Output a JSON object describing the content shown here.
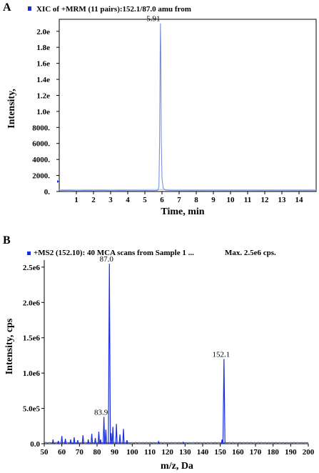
{
  "chart_data": [
    {
      "panel": "A",
      "type": "line",
      "header": "XIC of +MRM (11 pairs):152.1/87.0 amu from",
      "xlabel": "Time, min",
      "ylabel": "Intensity,",
      "xlim": [
        0,
        15
      ],
      "ylim": [
        0,
        2150
      ],
      "xticks": [
        1,
        2,
        3,
        4,
        5,
        6,
        7,
        8,
        9,
        10,
        11,
        12,
        13,
        14
      ],
      "xtick_labels": [
        "1",
        "2",
        "3",
        "4",
        "5",
        "6",
        "7",
        "8",
        "9",
        "10",
        "11",
        "12",
        "13",
        "14"
      ],
      "yticks": [
        0,
        200,
        400,
        600,
        800,
        1000,
        1200,
        1400,
        1600,
        1800,
        2000
      ],
      "ytick_labels": [
        "0.",
        "2000.",
        "4000.",
        "6000.",
        "8000.",
        "1.0e",
        "1.2e",
        "1.4e",
        "1.6e",
        "1.8e",
        "2.0e"
      ],
      "peak_label": "5.91",
      "series": [
        {
          "color": "#6f86d9",
          "x": [
            0.0,
            0.5,
            1.0,
            1.5,
            2.0,
            2.5,
            3.0,
            3.5,
            4.0,
            4.5,
            5.0,
            5.5,
            5.75,
            5.82,
            5.86,
            5.89,
            5.91,
            5.93,
            5.96,
            6.0,
            6.07,
            6.2,
            6.5,
            7.0,
            8.0,
            9.0,
            10.0,
            11.0,
            12.0,
            13.0,
            14.0,
            15.0
          ],
          "y": [
            12,
            14,
            11,
            13,
            12,
            14,
            12,
            13,
            11,
            12,
            13,
            12,
            14,
            60,
            600,
            1700,
            2100,
            1750,
            650,
            160,
            40,
            18,
            13,
            12,
            11,
            12,
            11,
            12,
            11,
            12,
            11,
            12
          ]
        },
        {
          "color": "#b0bcec",
          "x": [
            0.0,
            1.0,
            2.0,
            3.0,
            4.0,
            5.0,
            6.0,
            7.0,
            8.0,
            9.0,
            10.0,
            11.0,
            12.0,
            13.0,
            14.0,
            15.0
          ],
          "y": [
            22,
            24,
            22,
            23,
            22,
            24,
            24,
            23,
            22,
            23,
            22,
            23,
            22,
            23,
            22,
            23
          ]
        }
      ]
    },
    {
      "panel": "B",
      "type": "bar",
      "header": "+MS2 (152.10): 40 MCA scans from Sample 1 ...",
      "max_label": "Max. 2.5e6 cps.",
      "xlabel": "m/z, Da",
      "ylabel": "Intensity, cps",
      "xlim": [
        50,
        200
      ],
      "ylim": [
        0,
        2600000
      ],
      "xticks": [
        50,
        60,
        70,
        80,
        90,
        100,
        110,
        120,
        130,
        140,
        150,
        160,
        170,
        180,
        190,
        200
      ],
      "xtick_labels": [
        "50",
        "60",
        "70",
        "80",
        "90",
        "100",
        "110",
        "120",
        "130",
        "140",
        "150",
        "160",
        "170",
        "180",
        "190",
        "200"
      ],
      "yticks": [
        0,
        500000,
        1000000,
        1500000,
        2000000,
        2500000
      ],
      "ytick_labels": [
        "0.0",
        "5.0e5",
        "1.0e6",
        "1.5e6",
        "2.0e6",
        "2.5e6"
      ],
      "color": "#1a2ee0",
      "peaks": [
        {
          "mz": 55,
          "intensity": 60000
        },
        {
          "mz": 58,
          "intensity": 40000
        },
        {
          "mz": 60,
          "intensity": 110000
        },
        {
          "mz": 62,
          "intensity": 70000
        },
        {
          "mz": 65,
          "intensity": 60000
        },
        {
          "mz": 67,
          "intensity": 90000
        },
        {
          "mz": 69,
          "intensity": 50000
        },
        {
          "mz": 72,
          "intensity": 120000
        },
        {
          "mz": 75,
          "intensity": 60000
        },
        {
          "mz": 77,
          "intensity": 140000
        },
        {
          "mz": 79,
          "intensity": 80000
        },
        {
          "mz": 81,
          "intensity": 170000
        },
        {
          "mz": 82,
          "intensity": 60000
        },
        {
          "mz": 83.9,
          "intensity": 380000
        },
        {
          "mz": 85,
          "intensity": 200000
        },
        {
          "mz": 87.0,
          "intensity": 2550000
        },
        {
          "mz": 88,
          "intensity": 150000
        },
        {
          "mz": 89,
          "intensity": 240000
        },
        {
          "mz": 91,
          "intensity": 280000
        },
        {
          "mz": 93,
          "intensity": 130000
        },
        {
          "mz": 95,
          "intensity": 210000
        },
        {
          "mz": 97,
          "intensity": 50000
        },
        {
          "mz": 115,
          "intensity": 30000
        },
        {
          "mz": 129,
          "intensity": 20000
        },
        {
          "mz": 151,
          "intensity": 60000
        },
        {
          "mz": 152.1,
          "intensity": 1200000
        }
      ],
      "annotations": [
        {
          "mz": 87.0,
          "intensity": 2550000,
          "label": "87.0"
        },
        {
          "mz": 83.9,
          "intensity": 380000,
          "label": "83.9"
        },
        {
          "mz": 152.1,
          "intensity": 1200000,
          "label": "152.1"
        }
      ]
    }
  ]
}
